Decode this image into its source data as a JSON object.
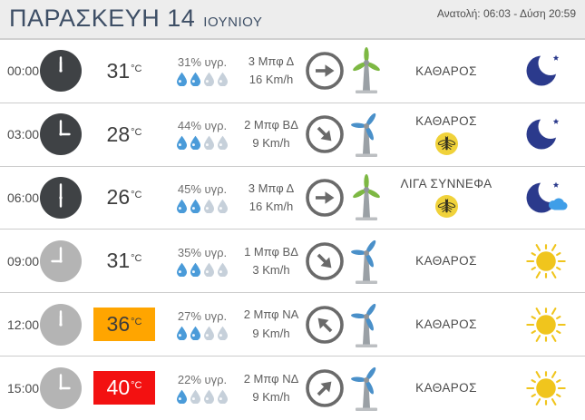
{
  "colors": {
    "temp_orange": "#ffa500",
    "temp_red": "#f31111",
    "moon_navy": "#2b3a8c",
    "cloud_blue": "#3f9ee8",
    "sun_yellow": "#f0c51d",
    "drop_blue": "#4a9bd9",
    "drop_gray": "#c6d0da",
    "turbine_green": "#7db843",
    "turbine_blue": "#4a90c9",
    "mosquito_yellow": "#f0d23a",
    "title_navy": "#3e4f66"
  },
  "header": {
    "day": "ΠΑΡΑΣΚΕΥΗ 14",
    "month": "ΙΟΥΝΙΟΥ",
    "sun_times": "Ανατολή: 06:03 - Δύση 20:59"
  },
  "rows": [
    {
      "time": "00:00",
      "clock": "dark",
      "temp": "31",
      "temp_unit": "°C",
      "temp_style": "normal",
      "humidity": "31% υγρ.",
      "drops_filled": 2,
      "drops_total": 4,
      "wind_beaufort": "3 Μπφ Δ",
      "wind_speed": "16 Km/h",
      "wind_arrow_deg": 0,
      "turbine": "green",
      "condition": "ΚΑΘΑΡΟΣ",
      "mosquito": false,
      "sky_icon": "moon"
    },
    {
      "time": "03:00",
      "clock": "dark",
      "temp": "28",
      "temp_unit": "°C",
      "temp_style": "normal",
      "humidity": "44% υγρ.",
      "drops_filled": 2,
      "drops_total": 4,
      "wind_beaufort": "2 Μπφ ΒΔ",
      "wind_speed": "9 Km/h",
      "wind_arrow_deg": 45,
      "turbine": "blue",
      "condition": "ΚΑΘΑΡΟΣ",
      "mosquito": true,
      "sky_icon": "moon"
    },
    {
      "time": "06:00",
      "clock": "dark",
      "temp": "26",
      "temp_unit": "°C",
      "temp_style": "normal",
      "humidity": "45% υγρ.",
      "drops_filled": 2,
      "drops_total": 4,
      "wind_beaufort": "3 Μπφ Δ",
      "wind_speed": "16 Km/h",
      "wind_arrow_deg": 0,
      "turbine": "green",
      "condition": "ΛΙΓΑ ΣΥΝΝΕΦΑ",
      "mosquito": true,
      "sky_icon": "moon-cloud"
    },
    {
      "time": "09:00",
      "clock": "light",
      "temp": "31",
      "temp_unit": "°C",
      "temp_style": "normal",
      "humidity": "35% υγρ.",
      "drops_filled": 2,
      "drops_total": 4,
      "wind_beaufort": "1 Μπφ ΒΔ",
      "wind_speed": "3 Km/h",
      "wind_arrow_deg": 45,
      "turbine": "blue",
      "condition": "ΚΑΘΑΡΟΣ",
      "mosquito": false,
      "sky_icon": "sun"
    },
    {
      "time": "12:00",
      "clock": "light",
      "temp": "36",
      "temp_unit": "°C",
      "temp_style": "orange",
      "humidity": "27% υγρ.",
      "drops_filled": 2,
      "drops_total": 4,
      "wind_beaufort": "2 Μπφ ΝΑ",
      "wind_speed": "9 Km/h",
      "wind_arrow_deg": 225,
      "turbine": "blue",
      "condition": "ΚΑΘΑΡΟΣ",
      "mosquito": false,
      "sky_icon": "sun"
    },
    {
      "time": "15:00",
      "clock": "light",
      "temp": "40",
      "temp_unit": "°C",
      "temp_style": "red",
      "humidity": "22% υγρ.",
      "drops_filled": 1,
      "drops_total": 4,
      "wind_beaufort": "2 Μπφ ΝΔ",
      "wind_speed": "9 Km/h",
      "wind_arrow_deg": 315,
      "turbine": "blue",
      "condition": "ΚΑΘΑΡΟΣ",
      "mosquito": false,
      "sky_icon": "sun"
    }
  ]
}
